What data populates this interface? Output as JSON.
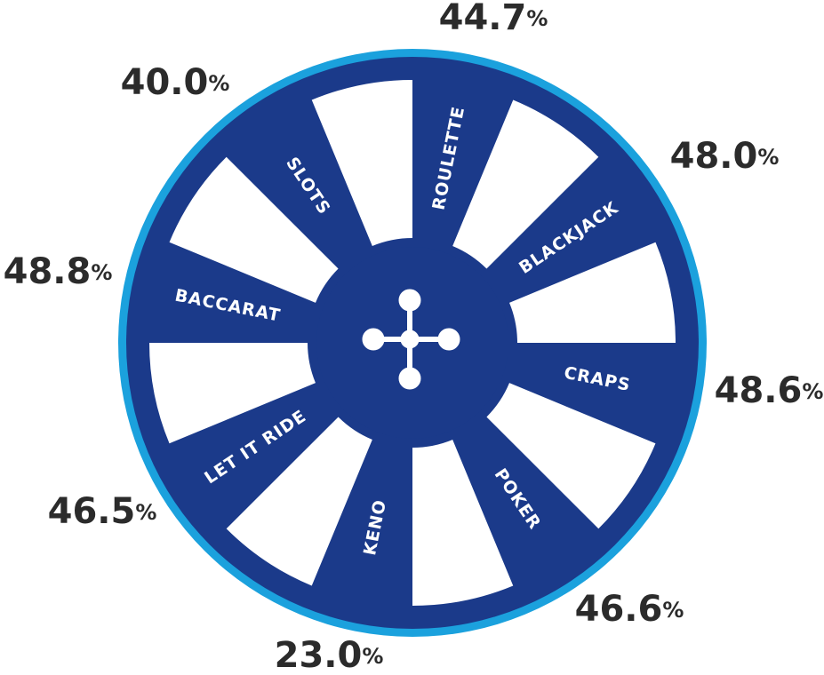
{
  "segments": [
    {
      "label": "ROULETTE",
      "value": "44.7",
      "unit": "%"
    },
    {
      "label": "BLACKJACK",
      "value": "48.0",
      "unit": "%"
    },
    {
      "label": "CRAPS",
      "value": "48.6",
      "unit": "%"
    },
    {
      "label": "POKER",
      "value": "46.6",
      "unit": "%"
    },
    {
      "label": "KENO",
      "value": "23.0",
      "unit": "%"
    },
    {
      "label": "LET IT RIDE",
      "value": "46.5",
      "unit": "%"
    },
    {
      "label": "BACCARAT",
      "value": "48.8",
      "unit": "%"
    },
    {
      "label": "SLOTS",
      "value": "40.0",
      "unit": "%"
    }
  ]
}
